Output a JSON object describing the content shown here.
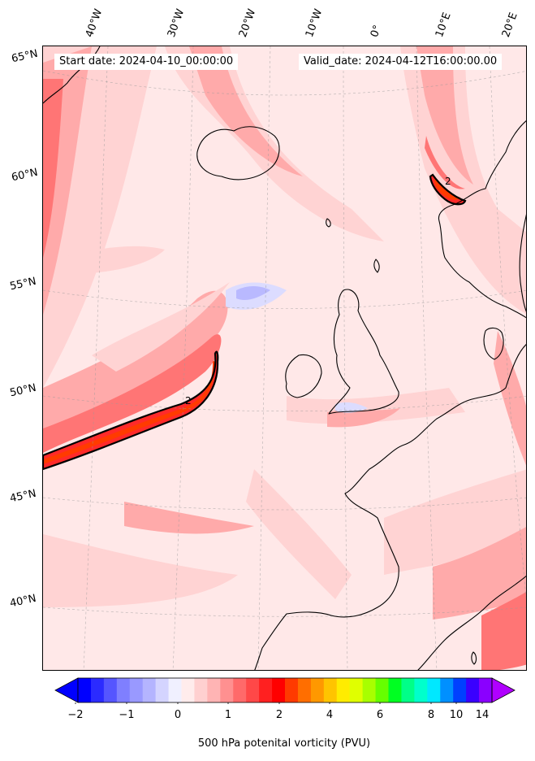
{
  "header": {
    "start_date": "Start date: 2024-04-10_00:00:00",
    "valid_date": "Valid_date: 2024-04-12T16:00:00.00"
  },
  "axes": {
    "longitude_labels": [
      "40°W",
      "30°W",
      "20°W",
      "10°W",
      "0°",
      "10°E",
      "20°E"
    ],
    "latitude_labels": [
      "65°N",
      "60°N",
      "55°N",
      "50°N",
      "45°N",
      "40°N"
    ]
  },
  "contour": {
    "label": "2",
    "level_pvu": 2
  },
  "colorbar": {
    "title": "500 hPa potenital vorticity (PVU)",
    "tick_labels": [
      "−2",
      "−1",
      "0",
      "1",
      "2",
      "4",
      "6",
      "8",
      "10",
      "14"
    ],
    "colors": [
      "#0000ff",
      "#2b2bff",
      "#5555ff",
      "#7f7fff",
      "#9999ff",
      "#b4b4ff",
      "#d4d4ff",
      "#f0f0ff",
      "#ffecec",
      "#ffd0d0",
      "#ffb4b4",
      "#ff9090",
      "#ff6a6a",
      "#ff4848",
      "#ff2020",
      "#ff0000",
      "#ff3a00",
      "#ff6e00",
      "#ff9800",
      "#ffc400",
      "#ffec00",
      "#e0ff00",
      "#a8ff00",
      "#66ff00",
      "#00ff22",
      "#00ff88",
      "#00ffcc",
      "#00e8ff",
      "#0090ff",
      "#0040ff",
      "#3a00ff",
      "#8a00ff"
    ],
    "under_color": "#0000ff",
    "over_color": "#b000ff"
  },
  "map": {
    "land_outline_color": "#000000",
    "background_color": "#ffe8e8",
    "field_colors": {
      "light": "#ffd3d3",
      "mid": "#ffaaaa",
      "strong": "#ff7575",
      "intense": "#ff2a2a",
      "core": "#ff3b00",
      "negative": "#dcdcff",
      "negative_strong": "#b9b9ff"
    }
  }
}
